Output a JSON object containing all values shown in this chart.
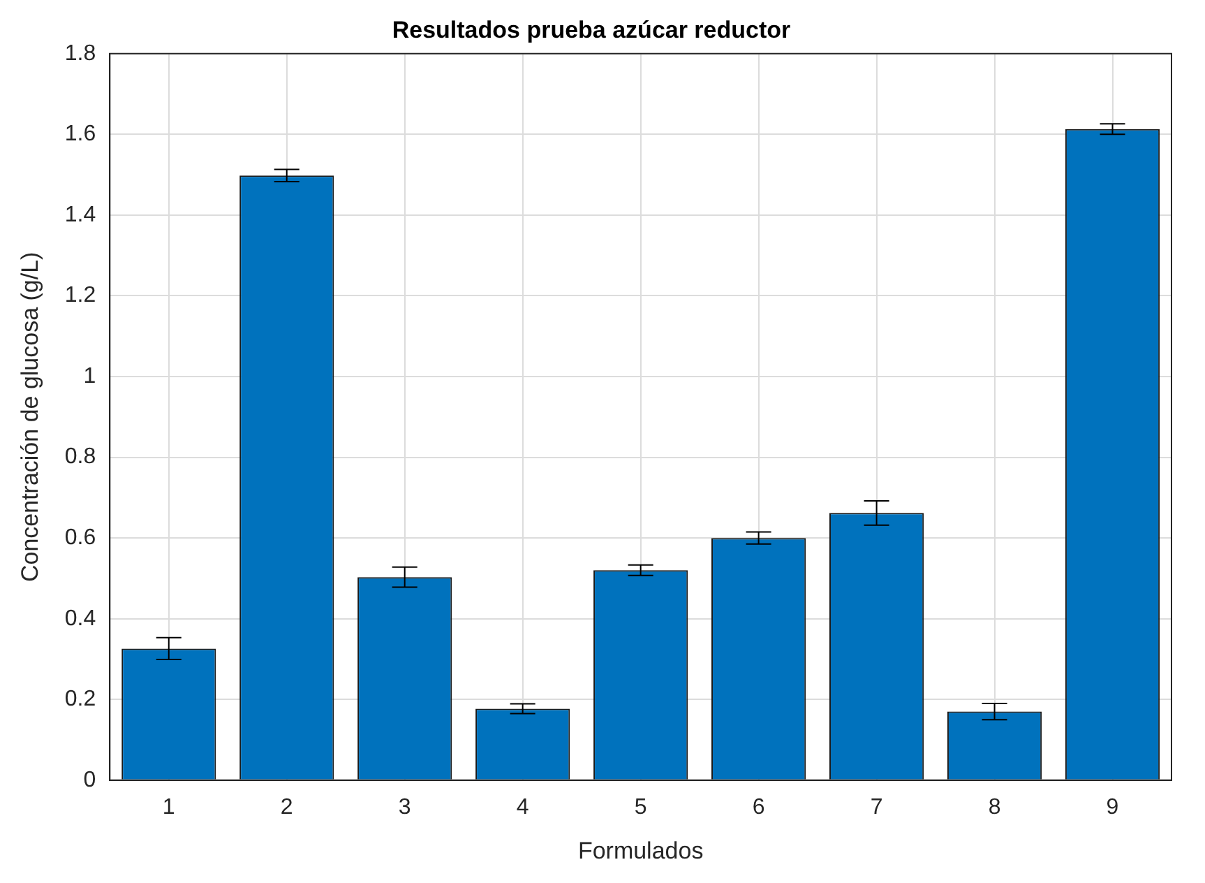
{
  "chart_data": {
    "type": "bar",
    "title": "Resultados prueba azúcar reductor",
    "xlabel": "Formulados",
    "ylabel": "Concentración de glucosa (g/L)",
    "categories": [
      "1",
      "2",
      "3",
      "4",
      "5",
      "6",
      "7",
      "8",
      "9"
    ],
    "values": [
      0.326,
      1.498,
      0.503,
      0.177,
      0.52,
      0.6,
      0.662,
      0.17,
      1.613
    ],
    "errors": [
      0.027,
      0.015,
      0.025,
      0.012,
      0.013,
      0.015,
      0.03,
      0.02,
      0.013
    ],
    "color": "#0072bd",
    "ylim": [
      0,
      1.8
    ],
    "yticks": [
      0,
      0.2,
      0.4,
      0.6,
      0.8,
      1,
      1.2,
      1.4,
      1.6,
      1.8
    ],
    "grid": true,
    "legend": false
  }
}
